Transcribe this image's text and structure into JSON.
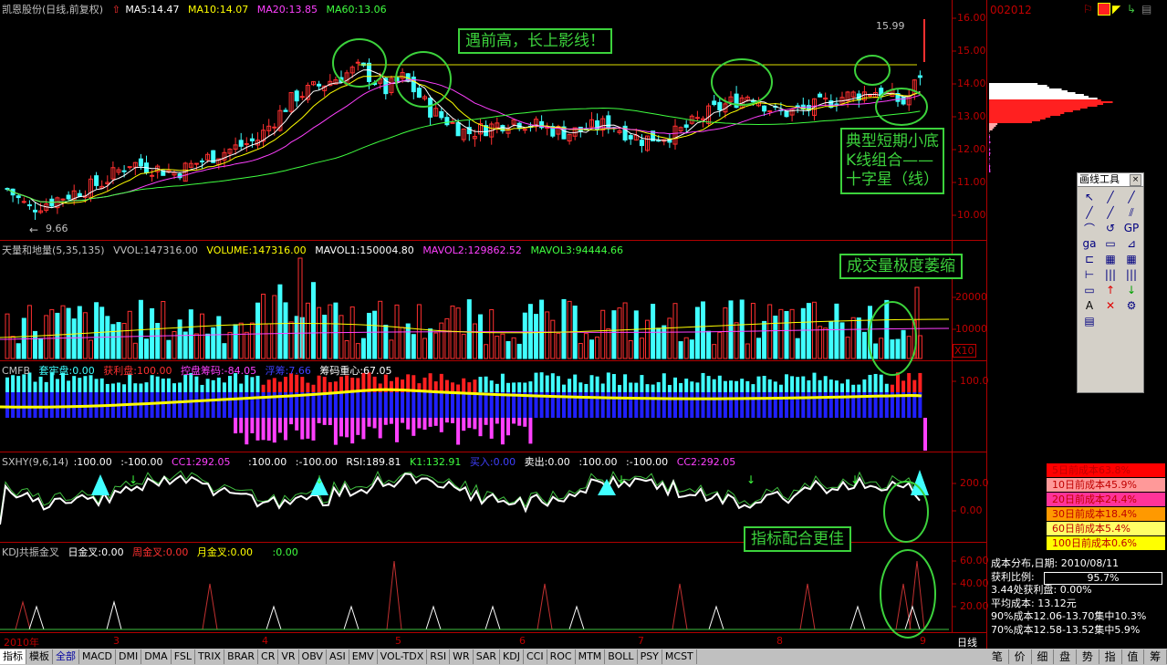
{
  "header": {
    "stock": "凯恩股份(日线,前复权)",
    "ma5": "MA5:14.47",
    "ma10": "MA10:14.07",
    "ma20": "MA20:13.85",
    "ma60": "MA60:13.06",
    "code": "002012"
  },
  "price_axis": [
    "16.00",
    "15.00",
    "14.00",
    "13.00",
    "12.00",
    "11.00",
    "10.00"
  ],
  "price_labels": {
    "high": "15.99",
    "low": "9.66"
  },
  "vol_panel": {
    "name": "天量和地量(5,35,135)",
    "vvol": "VVOL:147316.00",
    "volume": "VOLUME:147316.00",
    "mavol1": "MAVOL1:150004.80",
    "mavol2": "MAVOL2:129862.52",
    "mavol3": "MAVOL3:94444.66",
    "axis": [
      "20000",
      "10000"
    ],
    "unit": "X10"
  },
  "cmfb_panel": {
    "name": "CMFB",
    "lao": "套牢盘:0.00",
    "profit": "获利盘:100.00",
    "control": "控盘筹码:-84.05",
    "float": "浮筹:7.66",
    "center": "筹码重心:67.05",
    "axis": [
      "100.0"
    ]
  },
  "sxhy_panel": {
    "name": "SXHY(9,6,14)",
    "v1": ":100.00",
    "v2": ":-100.00",
    "cc1": "CC1:292.05",
    "v3": ":100.00",
    "v4": ":-100.00",
    "rsi": "RSI:189.81",
    "k1": "K1:132.91",
    "buy": "买入:0.00",
    "sell": "卖出:0.00",
    "v5": ":100.00",
    "v6": ":-100.00",
    "cc2": "CC2:292.05",
    "axis": [
      "200.0",
      "0.00"
    ]
  },
  "kdj_panel": {
    "name": "KDJ共振金叉",
    "day": "日金叉:0.00",
    "week": "周金叉:0.00",
    "month": "月金叉:0.00",
    "v": ":0.00",
    "axis": [
      "60.00",
      "40.00",
      "20.00"
    ]
  },
  "x_axis": {
    "year": "2010年",
    "months": [
      "3",
      "4",
      "5",
      "6",
      "7",
      "8",
      "9"
    ],
    "period": "日线"
  },
  "annotations": {
    "a1": "遇前高，长上影线！",
    "a2_line1": "典型短期小底",
    "a2_line2": "K线组合——",
    "a2_line3": "十字星（线）",
    "a3": "成交量极度萎缩",
    "a4": "指标配合更佳"
  },
  "toolbox": {
    "title": "画线工具",
    "close": "×",
    "items": [
      "↖",
      "╱",
      "╱",
      "╱",
      "╱",
      "⫽",
      "⌒",
      "↺",
      "GP",
      "ga",
      "▭",
      "⊿",
      "⊏",
      "▦",
      "▦",
      "⊢",
      "|||",
      "|||",
      "▭",
      "↑",
      "↓",
      "A",
      "✕",
      "⚙",
      "▤"
    ]
  },
  "cost_table": [
    {
      "label": "5日前成本63.8%",
      "bg": "#ff0000"
    },
    {
      "label": "10日前成本45.9%",
      "bg": "#ff9999"
    },
    {
      "label": "20日前成本24.4%",
      "bg": "#ff3399"
    },
    {
      "label": "30日前成本18.4%",
      "bg": "#ff9900"
    },
    {
      "label": "60日前成本5.4%",
      "bg": "#ffff66"
    },
    {
      "label": "100日前成本0.6%",
      "bg": "#ffff00"
    }
  ],
  "info": {
    "date": "成本分布,日期: 2010/08/11",
    "profit_label": "获利比例:",
    "profit_value": "95.7%",
    "profit_at": "3.44处获利盘: 0.00%",
    "avg": "平均成本: 13.12元",
    "c90": "90%成本12.06-13.70集中10.3%",
    "c70": "70%成本12.58-13.52集中5.9%"
  },
  "bottom_tabs": [
    "指标",
    "模板",
    "全部",
    "MACD",
    "DMI",
    "DMA",
    "FSL",
    "TRIX",
    "BRAR",
    "CR",
    "VR",
    "OBV",
    "ASI",
    "EMV",
    "VOL-TDX",
    "RSI",
    "WR",
    "SAR",
    "KDJ",
    "CCI",
    "ROC",
    "MTM",
    "BOLL",
    "PSY",
    "MCST"
  ],
  "right_tabs": [
    "笔",
    "价",
    "细",
    "盘",
    "势",
    "指",
    "值",
    "筹"
  ]
}
